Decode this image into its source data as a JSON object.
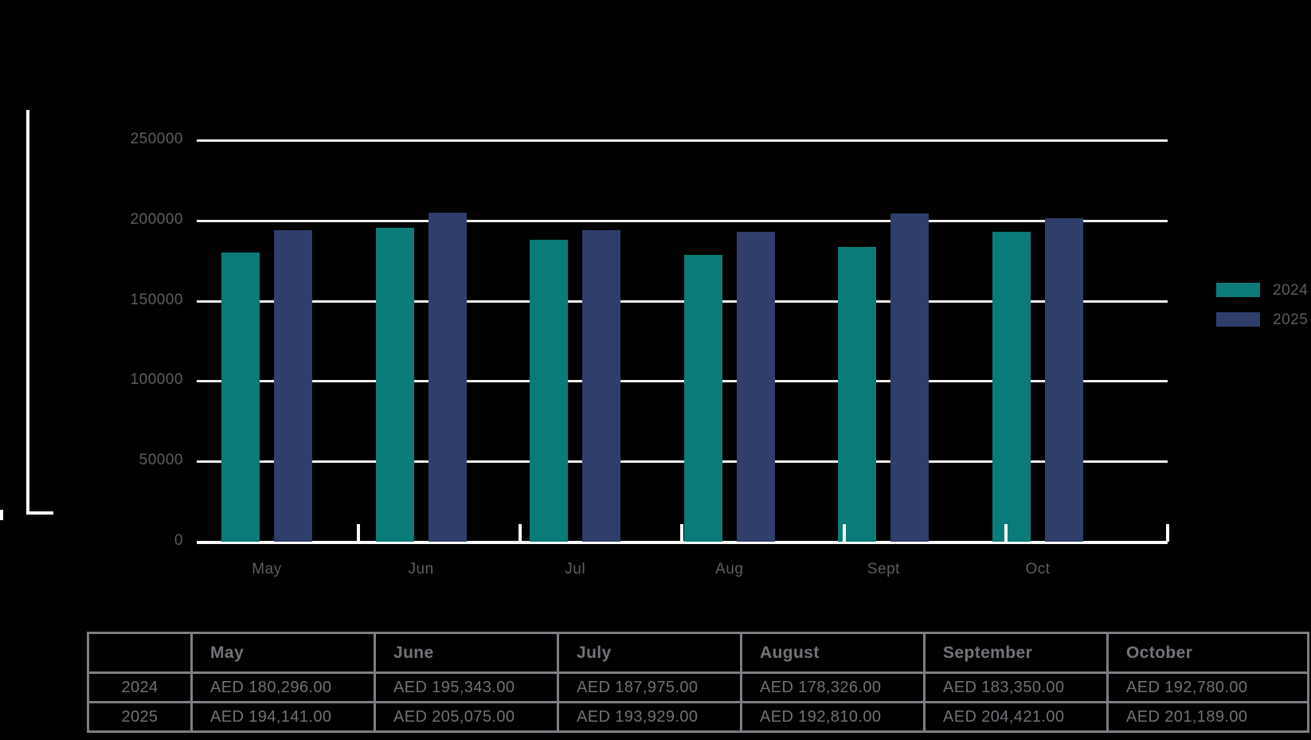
{
  "canvas": {
    "background": "#000000"
  },
  "chart_data": {
    "type": "bar",
    "title": "",
    "categories": [
      "May",
      "Jun",
      "Jul",
      "Aug",
      "Sept",
      "Oct"
    ],
    "series": [
      {
        "name": "2024",
        "color": "#0a7b78",
        "values": [
          180296,
          195343,
          187975,
          178326,
          183350,
          192780
        ]
      },
      {
        "name": "2025",
        "color": "#2f3e6b",
        "values": [
          194141,
          205075,
          193929,
          192810,
          204421,
          201189
        ]
      }
    ],
    "ylim": [
      0,
      250000
    ],
    "yticks": [
      0,
      50000,
      100000,
      150000,
      200000,
      250000
    ],
    "ytick_labels": [
      "0",
      "50000",
      "100000",
      "150000",
      "200000",
      "250000"
    ],
    "grid": true,
    "gridline_color": "#f2f0ef",
    "axis_label_color": "#5b5d62",
    "legend_position": "right"
  },
  "legend": {
    "items": [
      {
        "label": "2024",
        "color": "#0a7b78"
      },
      {
        "label": "2025",
        "color": "#2f3e6b"
      }
    ]
  },
  "table": {
    "headers": [
      "",
      "May",
      "June",
      "July",
      "August",
      "September",
      "October"
    ],
    "rows": [
      {
        "label": "2024",
        "values": [
          "AED 180,296.00",
          "AED 195,343.00",
          "AED 187,975.00",
          "AED 178,326.00",
          "AED 183,350.00",
          "AED 192,780.00"
        ]
      },
      {
        "label": "2025",
        "values": [
          "AED 194,141.00",
          "AED 205,075.00",
          "AED 193,929.00",
          "AED 192,810.00",
          "AED 204,421.00",
          "AED 201,189.00"
        ]
      }
    ],
    "border_color": "#7b7e83",
    "text_color": "#6e7176"
  }
}
